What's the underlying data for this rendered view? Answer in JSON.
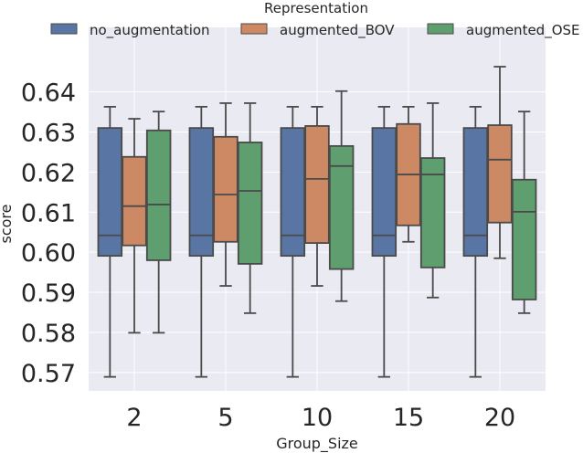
{
  "chart_data": {
    "type": "boxplot",
    "title": "",
    "xlabel": "Group_Size",
    "ylabel": "score",
    "categories": [
      "2",
      "5",
      "10",
      "15",
      "20"
    ],
    "yticks": [
      "0.57",
      "0.58",
      "0.59",
      "0.60",
      "0.61",
      "0.62",
      "0.63",
      "0.64"
    ],
    "ylim": [
      0.5654,
      0.6561
    ],
    "grid": true,
    "legend": {
      "title": "Representation",
      "placement": "top"
    },
    "series": [
      {
        "name": "no_augmentation",
        "color": "#5875a4",
        "boxes": [
          {
            "whislo": 0.5689,
            "q1": 0.5991,
            "med": 0.6042,
            "q3": 0.631,
            "whishi": 0.6363
          },
          {
            "whislo": 0.5689,
            "q1": 0.5991,
            "med": 0.6042,
            "q3": 0.631,
            "whishi": 0.6363
          },
          {
            "whislo": 0.5689,
            "q1": 0.5991,
            "med": 0.6042,
            "q3": 0.631,
            "whishi": 0.6363
          },
          {
            "whislo": 0.5689,
            "q1": 0.5991,
            "med": 0.6042,
            "q3": 0.631,
            "whishi": 0.6363
          },
          {
            "whislo": 0.5689,
            "q1": 0.5991,
            "med": 0.6042,
            "q3": 0.631,
            "whishi": 0.6363
          }
        ]
      },
      {
        "name": "augmented_BOV",
        "color": "#cc8963",
        "boxes": [
          {
            "whislo": 0.5799,
            "q1": 0.6017,
            "med": 0.6115,
            "q3": 0.6238,
            "whishi": 0.6333
          },
          {
            "whislo": 0.5916,
            "q1": 0.6026,
            "med": 0.6144,
            "q3": 0.6288,
            "whishi": 0.6372
          },
          {
            "whislo": 0.5916,
            "q1": 0.6023,
            "med": 0.6183,
            "q3": 0.6315,
            "whishi": 0.6363
          },
          {
            "whislo": 0.6026,
            "q1": 0.6067,
            "med": 0.6194,
            "q3": 0.632,
            "whishi": 0.6363
          },
          {
            "whislo": 0.5985,
            "q1": 0.6074,
            "med": 0.6231,
            "q3": 0.6317,
            "whishi": 0.6463
          }
        ]
      },
      {
        "name": "augmented_OSE",
        "color": "#5f9e6e",
        "boxes": [
          {
            "whislo": 0.5799,
            "q1": 0.598,
            "med": 0.6119,
            "q3": 0.6304,
            "whishi": 0.6351
          },
          {
            "whislo": 0.5848,
            "q1": 0.5971,
            "med": 0.6153,
            "q3": 0.6274,
            "whishi": 0.6372
          },
          {
            "whislo": 0.5878,
            "q1": 0.5958,
            "med": 0.6215,
            "q3": 0.6265,
            "whishi": 0.6402
          },
          {
            "whislo": 0.5887,
            "q1": 0.5962,
            "med": 0.6194,
            "q3": 0.6235,
            "whishi": 0.6372
          },
          {
            "whislo": 0.5848,
            "q1": 0.5882,
            "med": 0.6101,
            "q3": 0.6181,
            "whishi": 0.6351
          }
        ]
      }
    ],
    "colors": {
      "background": "#eaeaf2",
      "grid": "#ffffff",
      "edge": "#4a4a4a"
    }
  }
}
